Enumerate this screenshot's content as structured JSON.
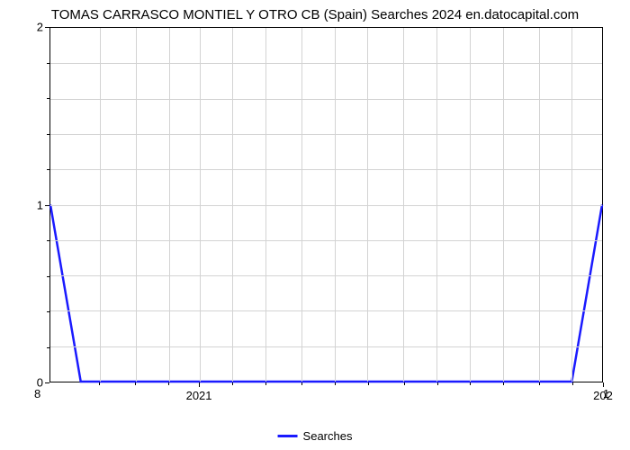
{
  "chart": {
    "type": "line",
    "title": "TOMAS CARRASCO MONTIEL Y OTRO CB (Spain) Searches 2024 en.datocapital.com",
    "title_fontsize": 15,
    "title_color": "#000000",
    "background_color": "#ffffff",
    "plot_border_color": "#000000",
    "grid_color": "#d3d3d3",
    "line_color": "#1a1aff",
    "line_width": 2.5,
    "x_axis": {
      "major_tick_labels": [
        "2021",
        "202"
      ],
      "major_tick_positions": [
        0.27,
        1.0
      ],
      "minor_tick_positions": [
        0.09,
        0.155,
        0.215,
        0.33,
        0.39,
        0.455,
        0.515,
        0.575,
        0.64,
        0.7,
        0.76,
        0.82,
        0.885,
        0.945
      ],
      "label_fontsize": 13
    },
    "y_axis": {
      "major_tick_labels": [
        "0",
        "1",
        "2"
      ],
      "major_tick_positions": [
        1.0,
        0.5,
        0.0
      ],
      "minor_tick_positions": [
        0.1,
        0.2,
        0.3,
        0.4,
        0.6,
        0.7,
        0.8,
        0.9
      ],
      "label_fontsize": 13
    },
    "grid_v_positions": [
      0.09,
      0.155,
      0.215,
      0.27,
      0.33,
      0.39,
      0.455,
      0.515,
      0.575,
      0.64,
      0.7,
      0.76,
      0.82,
      0.885,
      0.945
    ],
    "grid_h_positions": [
      0.1,
      0.2,
      0.3,
      0.4,
      0.5,
      0.6,
      0.7,
      0.8,
      0.9
    ],
    "corner_left_label": "8",
    "corner_right_label": "1",
    "data_points": [
      {
        "x": 0.0,
        "y": 0.5
      },
      {
        "x": 0.055,
        "y": 1.0
      },
      {
        "x": 0.945,
        "y": 1.0
      },
      {
        "x": 1.0,
        "y": 0.5
      }
    ],
    "legend": {
      "label": "Searches",
      "swatch_color": "#1a1aff"
    }
  }
}
